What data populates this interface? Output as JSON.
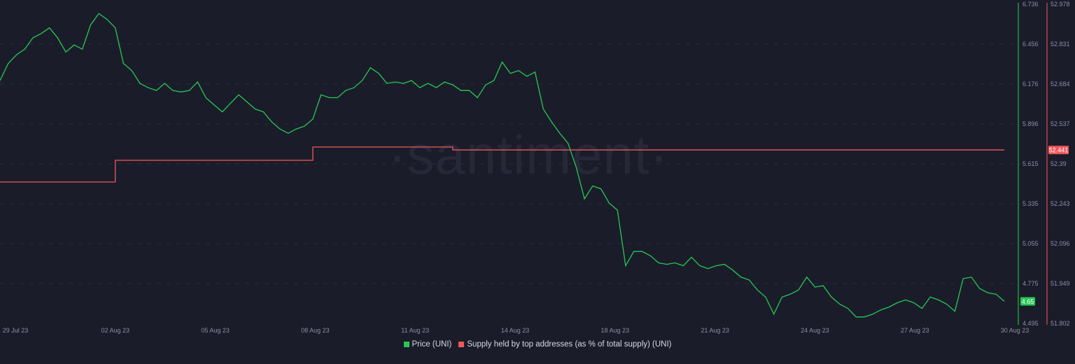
{
  "watermark": "·santiment·",
  "legend": [
    {
      "label": "Price (UNI)",
      "color": "#26c953"
    },
    {
      "label": "Supply held by top addresses (as % of total supply) (UNI)",
      "color": "#f0575a"
    }
  ],
  "chart_data": {
    "type": "line",
    "x_ticks": [
      "29 Jul 23",
      "02 Aug 23",
      "05 Aug 23",
      "08 Aug 23",
      "11 Aug 23",
      "14 Aug 23",
      "18 Aug 23",
      "21 Aug 23",
      "24 Aug 23",
      "27 Aug 23",
      "30 Aug 23"
    ],
    "y_left": {
      "label": "",
      "ticks": [
        "6.736",
        "6.456",
        "6.176",
        "5.896",
        "5.615",
        "5.335",
        "5.055",
        "4.775",
        "4.495"
      ],
      "range": [
        4.495,
        6.736
      ],
      "current": "4.65"
    },
    "y_right": {
      "label": "",
      "ticks": [
        "52.978",
        "52.831",
        "52.684",
        "52.537",
        "52.39",
        "52.243",
        "52.096",
        "51.949",
        "51.802"
      ],
      "range": [
        51.802,
        52.978
      ],
      "current": "52.441"
    },
    "grid": "horizontal dashed",
    "legend_position": "bottom",
    "series": [
      {
        "name": "Price (UNI)",
        "axis": "left",
        "color": "#26c953",
        "values": [
          6.2,
          6.32,
          6.38,
          6.42,
          6.5,
          6.53,
          6.57,
          6.5,
          6.4,
          6.45,
          6.42,
          6.59,
          6.67,
          6.63,
          6.57,
          6.32,
          6.27,
          6.18,
          6.15,
          6.13,
          6.18,
          6.13,
          6.12,
          6.13,
          6.19,
          6.08,
          6.03,
          5.98,
          6.04,
          6.1,
          6.05,
          6.0,
          5.98,
          5.91,
          5.86,
          5.83,
          5.86,
          5.88,
          5.93,
          6.1,
          6.08,
          6.08,
          6.13,
          6.15,
          6.2,
          6.29,
          6.25,
          6.18,
          6.19,
          6.18,
          6.2,
          6.15,
          6.18,
          6.15,
          6.19,
          6.17,
          6.13,
          6.13,
          6.08,
          6.17,
          6.2,
          6.33,
          6.25,
          6.27,
          6.23,
          6.26,
          6.0,
          5.91,
          5.83,
          5.76,
          5.59,
          5.37,
          5.46,
          5.44,
          5.34,
          5.29,
          4.9,
          5.0,
          5.0,
          4.97,
          4.92,
          4.91,
          4.92,
          4.9,
          4.96,
          4.9,
          4.88,
          4.9,
          4.91,
          4.87,
          4.82,
          4.8,
          4.73,
          4.68,
          4.56,
          4.68,
          4.7,
          4.73,
          4.82,
          4.75,
          4.76,
          4.68,
          4.63,
          4.6,
          4.54,
          4.54,
          4.56,
          4.59,
          4.61,
          4.64,
          4.66,
          4.64,
          4.6,
          4.68,
          4.66,
          4.63,
          4.58,
          4.81,
          4.82,
          4.74,
          4.71,
          4.7,
          4.65
        ]
      },
      {
        "name": "Supply held by top addresses (as % of total supply) (UNI)",
        "axis": "right",
        "color": "#f0575a",
        "steps": [
          {
            "value": 52.323,
            "points": 14
          },
          {
            "value": 52.403,
            "points": 24
          },
          {
            "value": 52.452,
            "points": 17
          },
          {
            "value": 52.441,
            "points": 68
          }
        ]
      }
    ]
  }
}
